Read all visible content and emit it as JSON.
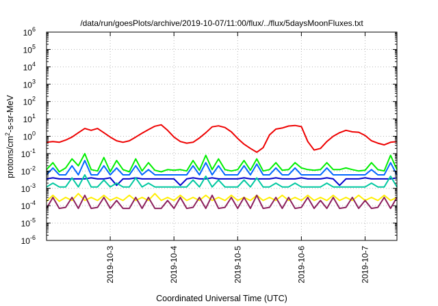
{
  "chart_data": {
    "type": "line",
    "title": "/data/run/goesPlots/archive/2019-10-07/11:00/flux/../flux/5daysMoonFluxes.txt",
    "xlabel": "Coordinated Universal Time (UTC)",
    "ylabel": {
      "prefix": "protons/cm",
      "sup": "2",
      "suffix": "-s-sr-MeV"
    },
    "y_scale": "log",
    "ylim": [
      1e-06,
      1000000.0
    ],
    "y_ticks": [
      {
        "value": 1000000.0,
        "base": "10",
        "exp": "6"
      },
      {
        "value": 100000.0,
        "base": "10",
        "exp": "5"
      },
      {
        "value": 10000.0,
        "base": "10",
        "exp": "4"
      },
      {
        "value": 1000.0,
        "base": "10",
        "exp": "3"
      },
      {
        "value": 100.0,
        "base": "10",
        "exp": "2"
      },
      {
        "value": 10.0,
        "base": "10",
        "exp": "1"
      },
      {
        "value": 1.0,
        "base": "10",
        "exp": "0"
      },
      {
        "value": 0.1,
        "base": "10",
        "exp": "-1"
      },
      {
        "value": 0.01,
        "base": "10",
        "exp": "-2"
      },
      {
        "value": 0.001,
        "base": "10",
        "exp": "-3"
      },
      {
        "value": 0.0001,
        "base": "10",
        "exp": "-4"
      },
      {
        "value": 1e-05,
        "base": "10",
        "exp": "-5"
      },
      {
        "value": 1e-06,
        "base": "10",
        "exp": "-6"
      }
    ],
    "x_range_days": [
      2.0,
      7.5
    ],
    "x_ticks": [
      {
        "day": 3,
        "label": "2019-10-3"
      },
      {
        "day": 4,
        "label": "2019-10-4"
      },
      {
        "day": 5,
        "label": "2019-10-5"
      },
      {
        "day": 6,
        "label": "2019-10-6"
      },
      {
        "day": 7,
        "label": "2019-10-7"
      }
    ],
    "grid": true,
    "legend": "none",
    "series": [
      {
        "color": "#ee0000",
        "x": [
          2.0,
          2.1,
          2.2,
          2.3,
          2.4,
          2.5,
          2.6,
          2.7,
          2.8,
          2.9,
          3.0,
          3.1,
          3.2,
          3.3,
          3.4,
          3.5,
          3.6,
          3.7,
          3.8,
          3.9,
          4.0,
          4.1,
          4.2,
          4.3,
          4.4,
          4.5,
          4.6,
          4.7,
          4.8,
          4.9,
          5.0,
          5.1,
          5.2,
          5.3,
          5.4,
          5.5,
          5.6,
          5.7,
          5.8,
          5.9,
          6.0,
          6.1,
          6.2,
          6.3,
          6.4,
          6.5,
          6.6,
          6.7,
          6.8,
          6.9,
          7.0,
          7.1,
          7.2,
          7.3,
          7.4,
          7.5
        ],
        "values": [
          0.45,
          0.5,
          0.45,
          0.6,
          0.9,
          1.6,
          2.8,
          2.2,
          2.8,
          1.6,
          0.9,
          0.55,
          0.45,
          0.55,
          0.9,
          1.5,
          2.4,
          3.8,
          4.6,
          2.2,
          0.9,
          0.5,
          0.4,
          0.45,
          0.8,
          1.6,
          3.5,
          4.0,
          3.2,
          1.8,
          0.75,
          0.35,
          0.2,
          0.12,
          0.22,
          1.2,
          2.6,
          3.0,
          3.9,
          4.2,
          3.6,
          0.5,
          0.16,
          0.2,
          0.5,
          1.0,
          1.6,
          2.2,
          1.8,
          1.7,
          1.1,
          0.55,
          0.4,
          0.32,
          0.45,
          0.5
        ]
      },
      {
        "color": "#00ee00",
        "x": [
          2.0,
          2.1,
          2.2,
          2.3,
          2.4,
          2.5,
          2.6,
          2.7,
          2.8,
          2.9,
          3.0,
          3.1,
          3.2,
          3.3,
          3.4,
          3.5,
          3.6,
          3.7,
          3.8,
          3.9,
          4.0,
          4.1,
          4.2,
          4.3,
          4.4,
          4.5,
          4.6,
          4.7,
          4.8,
          4.9,
          5.0,
          5.1,
          5.2,
          5.3,
          5.4,
          5.5,
          5.6,
          5.7,
          5.8,
          5.9,
          6.0,
          6.1,
          6.2,
          6.3,
          6.4,
          6.5,
          6.6,
          6.7,
          6.8,
          6.9,
          7.0,
          7.1,
          7.2,
          7.3,
          7.4,
          7.5
        ],
        "values": [
          0.012,
          0.03,
          0.009,
          0.015,
          0.05,
          0.02,
          0.1,
          0.012,
          0.01,
          0.06,
          0.009,
          0.04,
          0.012,
          0.009,
          0.05,
          0.01,
          0.03,
          0.011,
          0.009,
          0.012,
          0.011,
          0.012,
          0.01,
          0.04,
          0.011,
          0.08,
          0.012,
          0.05,
          0.012,
          0.01,
          0.012,
          0.04,
          0.011,
          0.05,
          0.01,
          0.012,
          0.03,
          0.011,
          0.012,
          0.03,
          0.015,
          0.012,
          0.011,
          0.012,
          0.03,
          0.012,
          0.012,
          0.015,
          0.012,
          0.01,
          0.011,
          0.03,
          0.012,
          0.01,
          0.08,
          0.012
        ]
      },
      {
        "color": "#0066ff",
        "x": [
          2.0,
          2.1,
          2.2,
          2.3,
          2.4,
          2.5,
          2.6,
          2.7,
          2.8,
          2.9,
          3.0,
          3.1,
          3.2,
          3.3,
          3.4,
          3.5,
          3.6,
          3.7,
          3.8,
          3.9,
          4.0,
          4.1,
          4.2,
          4.3,
          4.4,
          4.5,
          4.6,
          4.7,
          4.8,
          4.9,
          5.0,
          5.1,
          5.2,
          5.3,
          5.4,
          5.5,
          5.6,
          5.7,
          5.8,
          5.9,
          6.0,
          6.1,
          6.2,
          6.3,
          6.4,
          6.5,
          6.6,
          6.7,
          6.8,
          6.9,
          7.0,
          7.1,
          7.2,
          7.3,
          7.4,
          7.5
        ],
        "values": [
          0.006,
          0.015,
          0.006,
          0.006,
          0.02,
          0.006,
          0.04,
          0.006,
          0.006,
          0.02,
          0.006,
          0.015,
          0.006,
          0.006,
          0.02,
          0.006,
          0.012,
          0.006,
          0.006,
          0.006,
          0.006,
          0.006,
          0.006,
          0.02,
          0.006,
          0.03,
          0.006,
          0.02,
          0.006,
          0.006,
          0.006,
          0.02,
          0.006,
          0.025,
          0.006,
          0.006,
          0.015,
          0.006,
          0.006,
          0.015,
          0.006,
          0.006,
          0.006,
          0.006,
          0.015,
          0.006,
          0.006,
          0.006,
          0.006,
          0.006,
          0.006,
          0.012,
          0.006,
          0.006,
          0.03,
          0.006
        ]
      },
      {
        "color": "#0000cc",
        "x": [
          2.0,
          2.1,
          2.2,
          2.3,
          2.4,
          2.5,
          2.6,
          2.7,
          2.8,
          2.9,
          3.0,
          3.1,
          3.2,
          3.3,
          3.4,
          3.5,
          3.6,
          3.7,
          3.8,
          3.9,
          4.0,
          4.1,
          4.2,
          4.3,
          4.4,
          4.5,
          4.6,
          4.7,
          4.8,
          4.9,
          5.0,
          5.1,
          5.2,
          5.3,
          5.4,
          5.5,
          5.6,
          5.7,
          5.8,
          5.9,
          6.0,
          6.1,
          6.2,
          6.3,
          6.4,
          6.5,
          6.6,
          6.7,
          6.8,
          6.9,
          7.0,
          7.1,
          7.2,
          7.3,
          7.4,
          7.5
        ],
        "values": [
          0.0035,
          0.004,
          0.0035,
          0.0035,
          0.0035,
          0.0035,
          0.0035,
          0.004,
          0.0035,
          0.0035,
          0.004,
          0.0015,
          0.0035,
          0.0035,
          0.004,
          0.0035,
          0.0035,
          0.0035,
          0.0035,
          0.0035,
          0.0035,
          0.0015,
          0.0035,
          0.004,
          0.0035,
          0.0035,
          0.004,
          0.0035,
          0.0035,
          0.0035,
          0.0035,
          0.004,
          0.0035,
          0.0035,
          0.0035,
          0.0035,
          0.004,
          0.0035,
          0.0035,
          0.0035,
          0.004,
          0.0035,
          0.0035,
          0.0035,
          0.004,
          0.0035,
          0.0015,
          0.0035,
          0.0035,
          0.0035,
          0.004,
          0.0035,
          0.0035,
          0.0035,
          0.0035,
          0.004
        ]
      },
      {
        "color": "#00c8a0",
        "x": [
          2.0,
          2.1,
          2.2,
          2.3,
          2.4,
          2.5,
          2.6,
          2.7,
          2.8,
          2.9,
          3.0,
          3.1,
          3.2,
          3.3,
          3.4,
          3.5,
          3.6,
          3.7,
          3.8,
          3.9,
          4.0,
          4.1,
          4.2,
          4.3,
          4.4,
          4.5,
          4.6,
          4.7,
          4.8,
          4.9,
          5.0,
          5.1,
          5.2,
          5.3,
          5.4,
          5.5,
          5.6,
          5.7,
          5.8,
          5.9,
          6.0,
          6.1,
          6.2,
          6.3,
          6.4,
          6.5,
          6.6,
          6.7,
          6.8,
          6.9,
          7.0,
          7.1,
          7.2,
          7.3,
          7.4,
          7.5
        ],
        "values": [
          0.0012,
          0.002,
          0.0012,
          0.0012,
          0.004,
          0.0012,
          0.006,
          0.0012,
          0.0012,
          0.003,
          0.0012,
          0.002,
          0.0012,
          0.0012,
          0.004,
          0.0012,
          0.002,
          0.0012,
          0.0012,
          0.0012,
          0.0012,
          0.0012,
          0.0012,
          0.003,
          0.0012,
          0.005,
          0.0012,
          0.003,
          0.0012,
          0.0012,
          0.0012,
          0.003,
          0.0012,
          0.004,
          0.0012,
          0.0012,
          0.002,
          0.0012,
          0.0012,
          0.002,
          0.0012,
          0.0012,
          0.0012,
          0.0012,
          0.002,
          0.0012,
          0.0012,
          0.0012,
          0.0012,
          0.0012,
          0.0012,
          0.002,
          0.0012,
          0.0012,
          0.005,
          0.0012
        ]
      },
      {
        "color": "#ffee00",
        "x": [
          2.0,
          2.1,
          2.2,
          2.3,
          2.4,
          2.5,
          2.6,
          2.7,
          2.8,
          2.9,
          3.0,
          3.1,
          3.2,
          3.3,
          3.4,
          3.5,
          3.6,
          3.7,
          3.8,
          3.9,
          4.0,
          4.1,
          4.2,
          4.3,
          4.4,
          4.5,
          4.6,
          4.7,
          4.8,
          4.9,
          5.0,
          5.1,
          5.2,
          5.3,
          5.4,
          5.5,
          5.6,
          5.7,
          5.8,
          5.9,
          6.0,
          6.1,
          6.2,
          6.3,
          6.4,
          6.5,
          6.6,
          6.7,
          6.8,
          6.9,
          7.0,
          7.1,
          7.2,
          7.3,
          7.4,
          7.5
        ],
        "values": [
          0.00018,
          0.0004,
          0.00018,
          0.0003,
          0.0002,
          0.0005,
          0.0002,
          0.0003,
          0.0002,
          0.0004,
          0.0002,
          0.0003,
          0.0002,
          0.0004,
          0.0002,
          0.0003,
          0.0002,
          0.0005,
          0.0002,
          0.0003,
          0.0002,
          0.0004,
          0.0002,
          0.0003,
          0.0002,
          0.0004,
          0.0002,
          0.0003,
          0.0002,
          0.0004,
          0.0002,
          0.0003,
          0.0002,
          0.0004,
          0.0002,
          0.0003,
          0.0002,
          0.0004,
          0.0002,
          0.0003,
          0.0002,
          0.0004,
          0.0002,
          0.0003,
          0.0002,
          0.0004,
          0.0002,
          0.0003,
          0.0002,
          0.0004,
          0.0002,
          0.0003,
          0.0002,
          0.0004,
          0.0002,
          0.0003
        ]
      },
      {
        "color": "#8b1e5c",
        "x": [
          2.0,
          2.1,
          2.2,
          2.3,
          2.4,
          2.5,
          2.6,
          2.7,
          2.8,
          2.9,
          3.0,
          3.1,
          3.2,
          3.3,
          3.4,
          3.5,
          3.6,
          3.7,
          3.8,
          3.9,
          4.0,
          4.1,
          4.2,
          4.3,
          4.4,
          4.5,
          4.6,
          4.7,
          4.8,
          4.9,
          5.0,
          5.1,
          5.2,
          5.3,
          5.4,
          5.5,
          5.6,
          5.7,
          5.8,
          5.9,
          6.0,
          6.1,
          6.2,
          6.3,
          6.4,
          6.5,
          6.6,
          6.7,
          6.8,
          6.9,
          7.0,
          7.1,
          7.2,
          7.3,
          7.4,
          7.5
        ],
        "values": [
          7e-05,
          0.0003,
          7e-05,
          8e-05,
          0.0003,
          7e-05,
          0.0004,
          7e-05,
          8e-05,
          0.0003,
          7e-05,
          0.0002,
          7e-05,
          7e-05,
          0.0003,
          7e-05,
          0.0003,
          7e-05,
          7e-05,
          0.0002,
          7e-05,
          0.0003,
          7e-05,
          8e-05,
          0.0003,
          7e-05,
          0.0004,
          7e-05,
          8e-05,
          0.0003,
          7e-05,
          0.0003,
          7e-05,
          0.0004,
          7e-05,
          8e-05,
          0.0003,
          7e-05,
          0.0003,
          7e-05,
          8e-05,
          0.0003,
          7e-05,
          0.0002,
          7e-05,
          0.0003,
          7e-05,
          8e-05,
          0.0003,
          7e-05,
          0.0002,
          7e-05,
          8e-05,
          0.0003,
          7e-05,
          0.0003
        ]
      }
    ]
  }
}
